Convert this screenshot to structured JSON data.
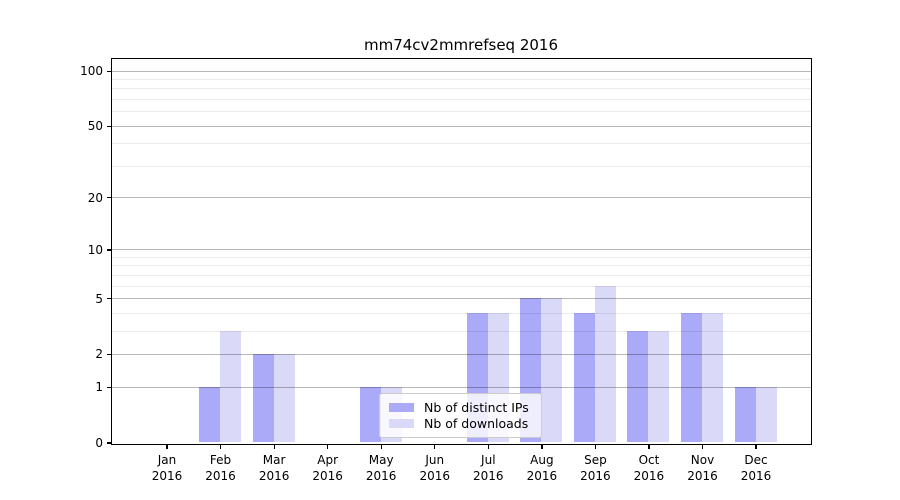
{
  "chart_data": {
    "type": "bar",
    "title": "mm74cv2mmrefseq 2016",
    "categories": [
      "Jan",
      "Feb",
      "Mar",
      "Apr",
      "May",
      "Jun",
      "Jul",
      "Aug",
      "Sep",
      "Oct",
      "Nov",
      "Dec"
    ],
    "year_label": "2016",
    "series": [
      {
        "name": "Nb of distinct IPs",
        "color": "#aaaaf8",
        "values": [
          0,
          1,
          2,
          0,
          1,
          0,
          4,
          5,
          4,
          3,
          4,
          1
        ]
      },
      {
        "name": "Nb of downloads",
        "color": "#dadaf8",
        "values": [
          0,
          3,
          2,
          0,
          1,
          0,
          4,
          5,
          6,
          3,
          4,
          1
        ]
      }
    ],
    "y_axis": {
      "scale": "log1p",
      "major_ticks": [
        0,
        1,
        2,
        5,
        10,
        20,
        50,
        100
      ],
      "minor_gridlines": [
        3,
        4,
        6,
        7,
        8,
        9,
        30,
        40,
        60,
        70,
        80,
        90
      ],
      "max": 100
    },
    "x_axis": {
      "tick_count": 12
    },
    "legend": {
      "position": "lower center"
    },
    "grid": true
  },
  "colors": {
    "background": "#ffffff",
    "spine": "#000000",
    "bar_distinct_ips": "#aaaaf8",
    "bar_downloads": "#dadaf8",
    "major_grid": "rgba(0,0,0,0.28)",
    "minor_grid": "rgba(0,0,0,0.08)",
    "legend_border": "#cccccc"
  }
}
